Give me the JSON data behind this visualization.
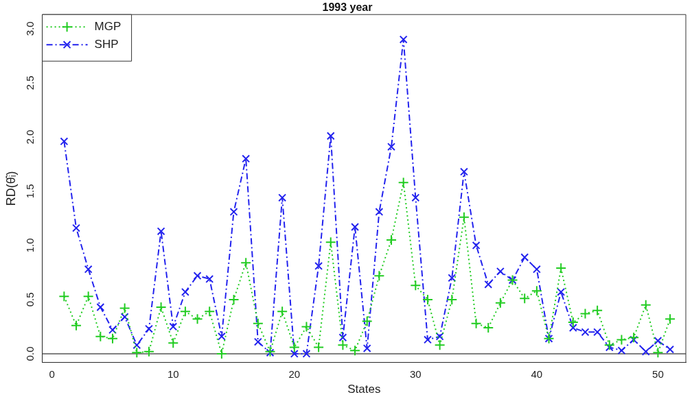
{
  "chart_data": {
    "type": "line",
    "title": "1993 year",
    "xlabel": "States",
    "ylabel": "RD(θ̂ᵢ)",
    "x": [
      1,
      2,
      3,
      4,
      5,
      6,
      7,
      8,
      9,
      10,
      11,
      12,
      13,
      14,
      15,
      16,
      17,
      18,
      19,
      20,
      21,
      22,
      23,
      24,
      25,
      26,
      27,
      28,
      29,
      30,
      31,
      32,
      33,
      34,
      35,
      36,
      37,
      38,
      39,
      40,
      41,
      42,
      43,
      44,
      45,
      46,
      47,
      48,
      49,
      50,
      51
    ],
    "series": [
      {
        "name": "MGP",
        "color": "#22cc22",
        "marker": "cross",
        "line_style": "dotted",
        "values": [
          0.53,
          0.26,
          0.53,
          0.16,
          0.14,
          0.42,
          0.01,
          0.02,
          0.43,
          0.1,
          0.39,
          0.32,
          0.39,
          0.0,
          0.5,
          0.84,
          0.28,
          0.02,
          0.39,
          0.06,
          0.25,
          0.06,
          1.03,
          0.08,
          0.03,
          0.3,
          0.72,
          1.05,
          1.58,
          0.63,
          0.5,
          0.08,
          0.5,
          1.26,
          0.28,
          0.24,
          0.47,
          0.68,
          0.51,
          0.58,
          0.14,
          0.79,
          0.29,
          0.37,
          0.4,
          0.08,
          0.13,
          0.15,
          0.45,
          0.01,
          0.32
        ]
      },
      {
        "name": "SHP",
        "color": "#2222ee",
        "marker": "cross",
        "line_style": "dashed",
        "values": [
          1.96,
          1.16,
          0.78,
          0.43,
          0.22,
          0.34,
          0.08,
          0.23,
          1.13,
          0.25,
          0.57,
          0.72,
          0.69,
          0.16,
          1.31,
          1.8,
          0.11,
          0.01,
          1.44,
          0.0,
          0.0,
          0.81,
          2.01,
          0.15,
          1.17,
          0.05,
          1.31,
          1.91,
          2.9,
          1.44,
          0.13,
          0.16,
          0.7,
          1.68,
          1.0,
          0.64,
          0.76,
          0.68,
          0.89,
          0.78,
          0.14,
          0.57,
          0.24,
          0.2,
          0.2,
          0.06,
          0.03,
          0.13,
          0.02,
          0.12,
          0.04
        ]
      }
    ],
    "xlim": [
      -0.8,
      52.3
    ],
    "xticks": [
      0,
      10,
      20,
      30,
      40,
      50
    ],
    "ylim": [
      -0.08,
      3.13
    ],
    "yticks": [
      {
        "value": 0,
        "label": "0.0"
      },
      {
        "value": 0.5,
        "label": "0.5"
      },
      {
        "value": 1,
        "label": "1.0"
      },
      {
        "value": 1.5,
        "label": "1.5"
      },
      {
        "value": 2,
        "label": "2.0"
      },
      {
        "value": 2.5,
        "label": "2.5"
      },
      {
        "value": 3,
        "label": "3.0"
      }
    ],
    "ref_lines": [
      {
        "axis": "y",
        "value": 0,
        "color": "#808080"
      }
    ],
    "legend": "top left"
  }
}
